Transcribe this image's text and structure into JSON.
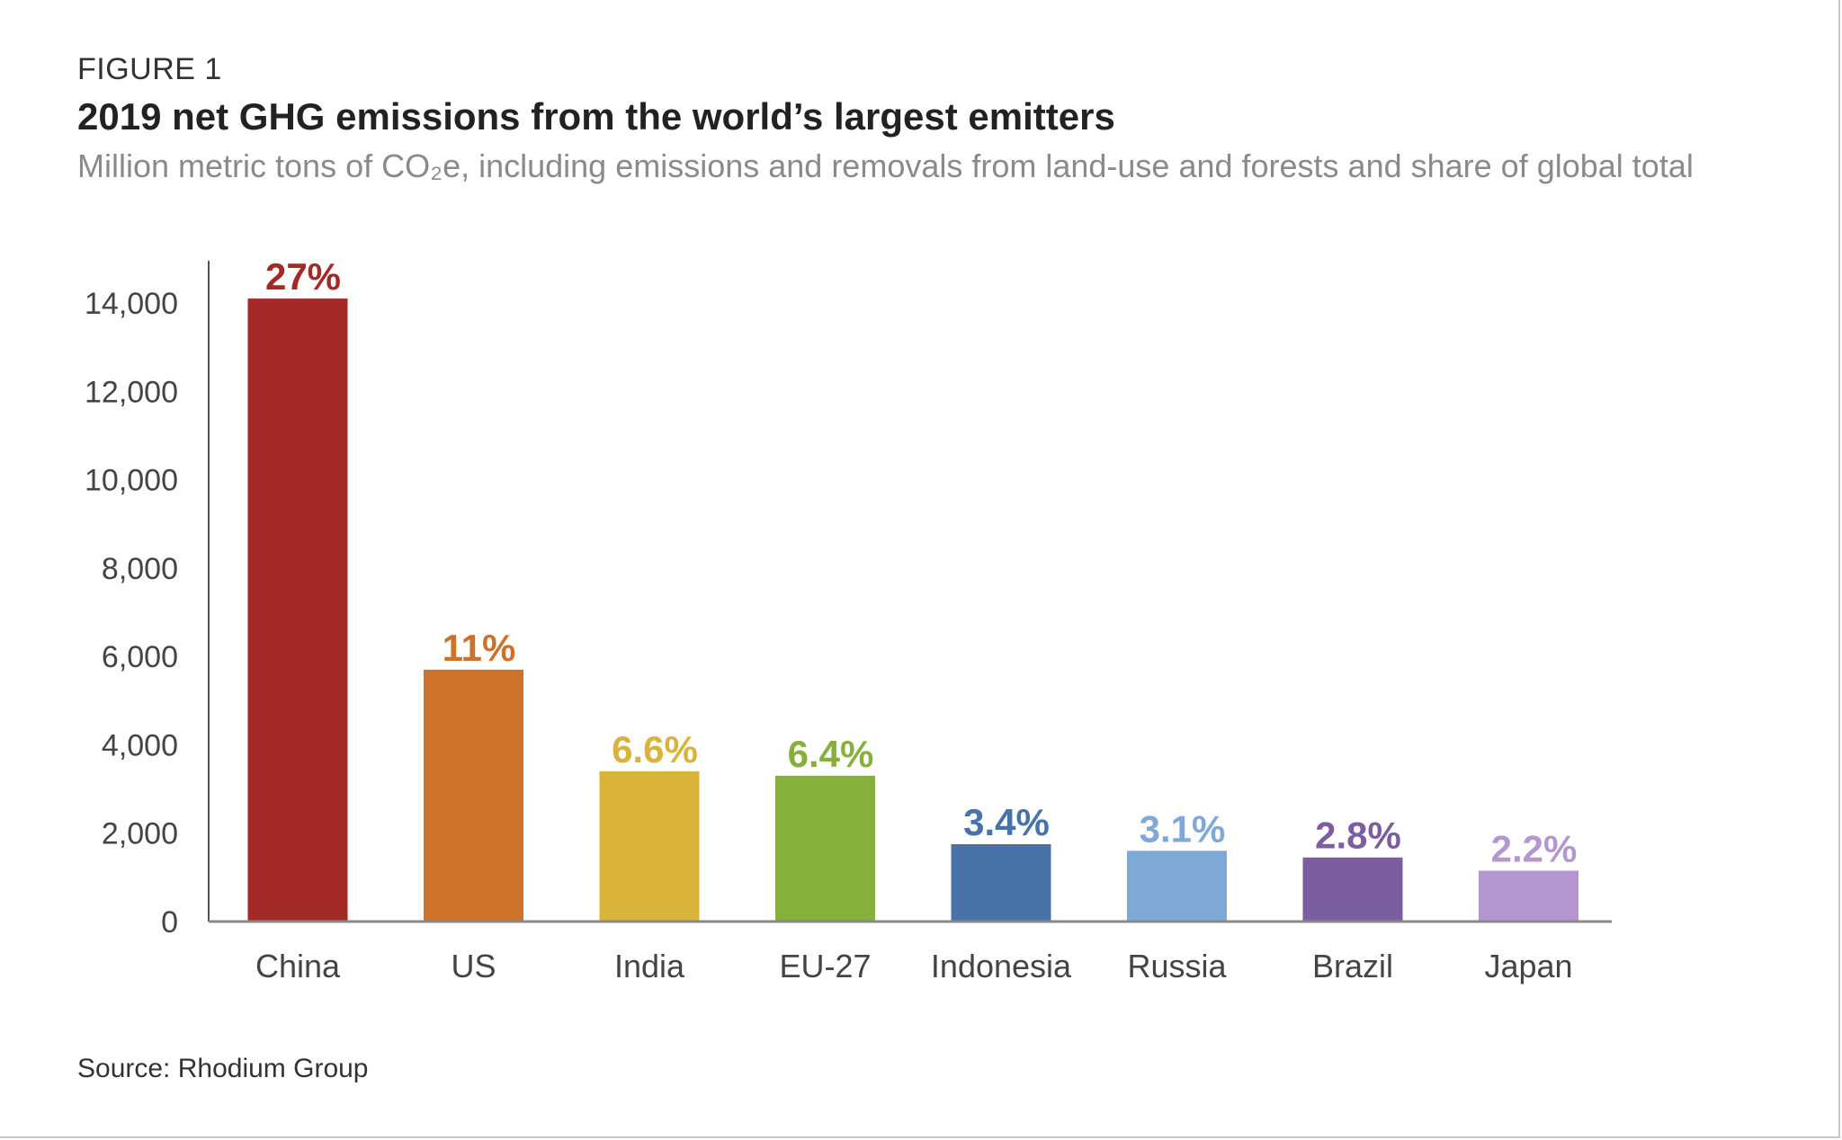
{
  "figure_label": "FIGURE 1",
  "title": "2019 net GHG emissions from the world’s largest emitters",
  "subtitle": "Million metric tons of CO₂e, including emissions and removals from land-use and forests and share of global total",
  "source": "Source: Rhodium Group",
  "chart_data": {
    "type": "bar",
    "title": "2019 net GHG emissions from the world’s largest emitters",
    "ylim": [
      0,
      14000
    ],
    "yticks": [
      0,
      2000,
      4000,
      6000,
      8000,
      10000,
      12000,
      14000
    ],
    "ytick_labels": [
      "0",
      "2,000",
      "4,000",
      "6,000",
      "8,000",
      "10,000",
      "12,000",
      "14,000"
    ],
    "grid": false,
    "categories": [
      "China",
      "US",
      "India",
      "EU-27",
      "Indonesia",
      "Russia",
      "Brazil",
      "Japan"
    ],
    "values": [
      14100,
      5700,
      3400,
      3300,
      1750,
      1600,
      1450,
      1150
    ],
    "labels": [
      "27%",
      "11%",
      "6.6%",
      "6.4%",
      "3.4%",
      "3.1%",
      "2.8%",
      "2.2%"
    ],
    "colors": [
      "#a32a26",
      "#cc722a",
      "#d9b33a",
      "#86b03c",
      "#4773a8",
      "#7fa8d6",
      "#7b5ea0",
      "#b497d0"
    ]
  }
}
